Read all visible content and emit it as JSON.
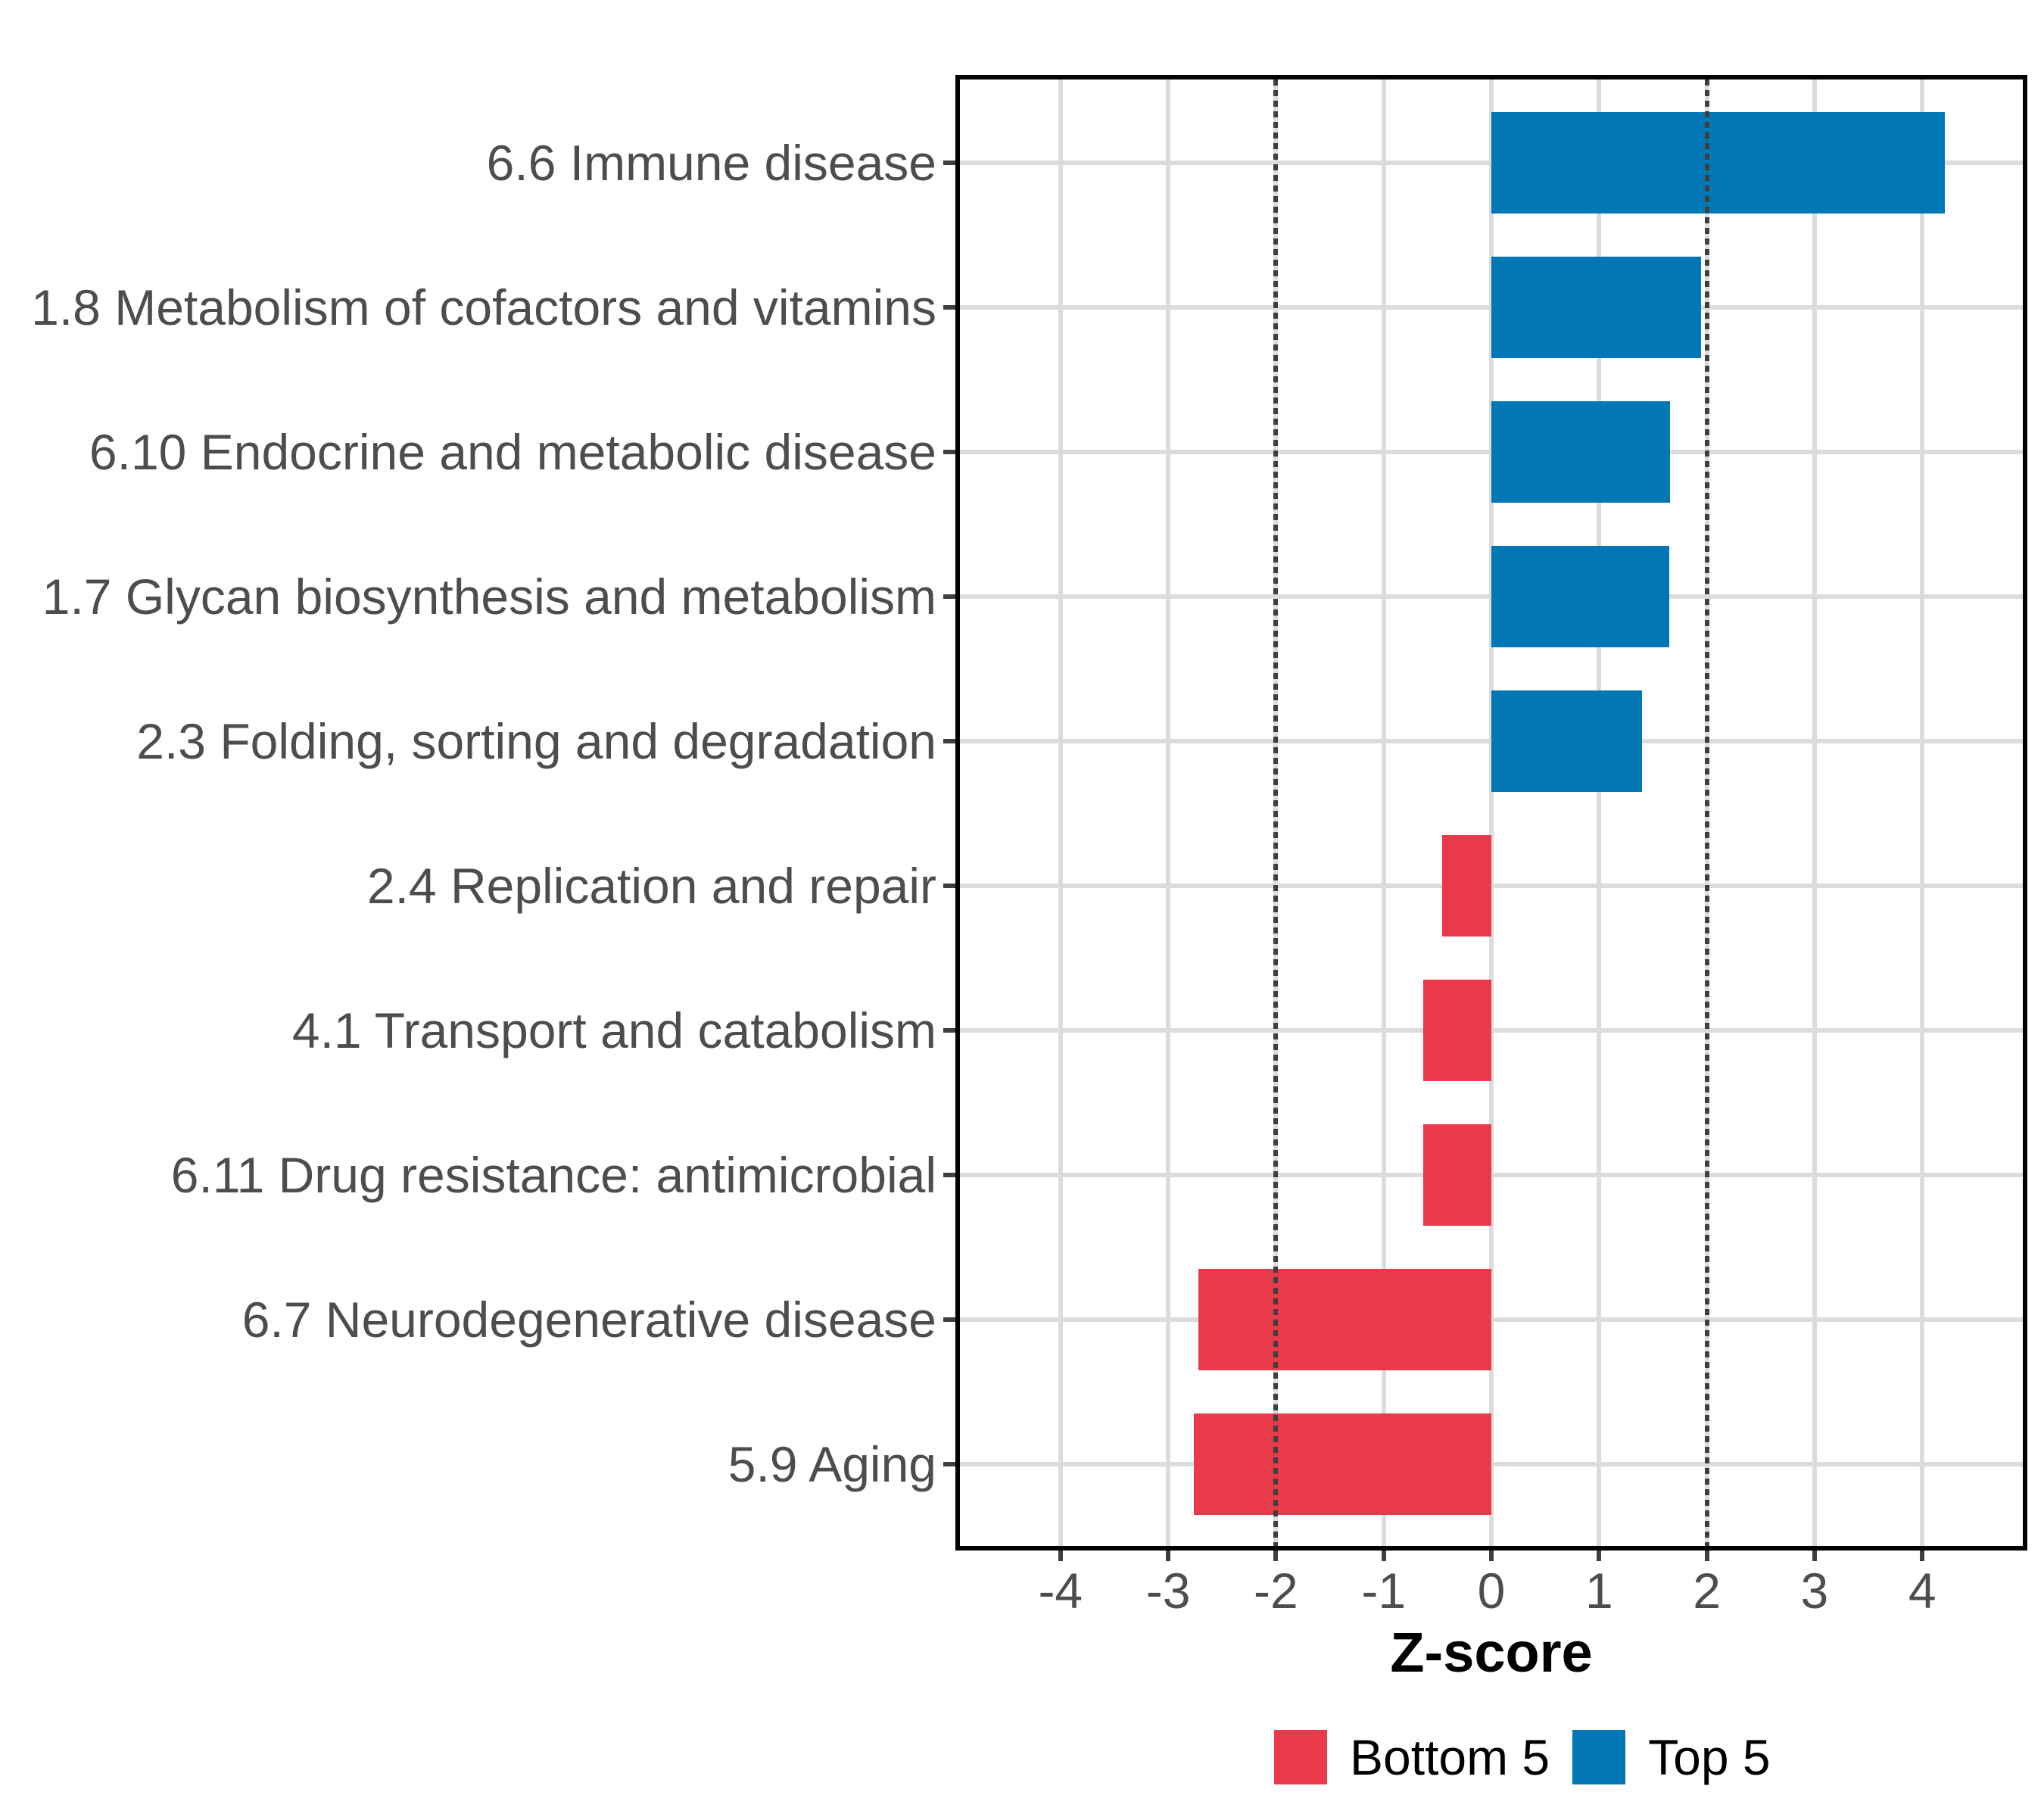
{
  "chart_data": {
    "type": "bar",
    "orientation": "horizontal",
    "title": "",
    "xlabel": "Z-score",
    "categories": [
      "6.6 Immune disease",
      "1.8 Metabolism of cofactors and vitamins",
      "6.10 Endocrine and metabolic disease",
      "1.7 Glycan biosynthesis and metabolism",
      "2.3 Folding, sorting and degradation",
      "2.4 Replication and repair",
      "4.1 Transport and catabolism",
      "6.11 Drug resistance: antimicrobial",
      "6.7 Neurodegenerative disease",
      "5.9 Aging"
    ],
    "values": [
      4.21,
      1.95,
      1.66,
      1.65,
      1.4,
      -0.46,
      -0.63,
      -0.63,
      -2.72,
      -2.76
    ],
    "group_of_bar": [
      "Top 5",
      "Top 5",
      "Top 5",
      "Top 5",
      "Top 5",
      "Bottom 5",
      "Bottom 5",
      "Bottom 5",
      "Bottom 5",
      "Bottom 5"
    ],
    "x_ticks": [
      -4,
      -3,
      -2,
      -1,
      0,
      1,
      2,
      3,
      4
    ],
    "xlim": [
      -5,
      5
    ],
    "reference_lines": [
      -2,
      2
    ],
    "grid": "major-x and category-y, light gray",
    "legend_position": "bottom",
    "legend": [
      {
        "label": "Bottom 5",
        "color": "#e83a48"
      },
      {
        "label": "Top 5",
        "color": "#0277b5"
      }
    ],
    "colors": {
      "top5_blue": "#0277b5",
      "bottom5_red": "#e83a48",
      "gridline": "#dcdcdc",
      "reference_line": "#3f3f3f",
      "panel_border": "#000000",
      "axis_text": "#4d4d4d",
      "axis_title": "#000000"
    }
  }
}
